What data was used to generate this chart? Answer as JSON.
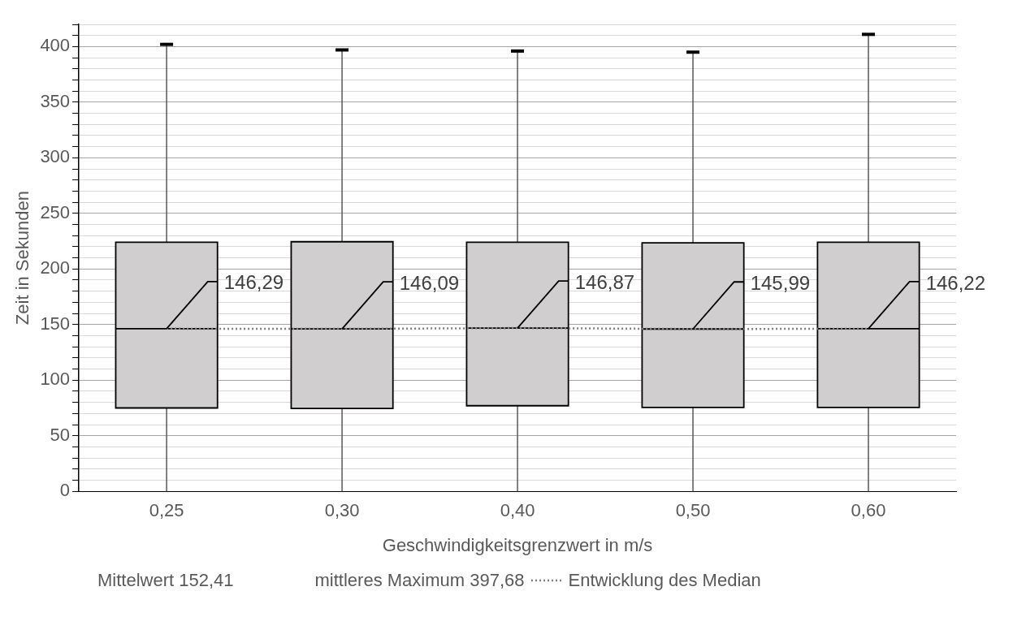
{
  "chart_data": {
    "type": "box",
    "xlabel": "Geschwindigkeitsgrenzwert in m/s",
    "ylabel": "Zeit in Sekunden",
    "categories": [
      "0,25",
      "0,30",
      "0,40",
      "0,50",
      "0,60"
    ],
    "boxes": [
      {
        "low": 0,
        "q1": 75,
        "median": 146.29,
        "q3": 224,
        "high": 402
      },
      {
        "low": 0,
        "q1": 74.5,
        "median": 146.09,
        "q3": 224.5,
        "high": 397
      },
      {
        "low": 0,
        "q1": 77,
        "median": 146.87,
        "q3": 224,
        "high": 396
      },
      {
        "low": 0,
        "q1": 75.5,
        "median": 145.99,
        "q3": 223.5,
        "high": 395
      },
      {
        "low": 0,
        "q1": 75.5,
        "median": 146.22,
        "q3": 224,
        "high": 411
      }
    ],
    "color": "#d0cece",
    "series": [
      {
        "name": "Entwicklung des Median",
        "type": "line",
        "color": "#7f7f7f",
        "line_style": "dotted",
        "marker": "none",
        "values": [
          146.29,
          146.09,
          146.87,
          145.99,
          146.22
        ],
        "value_labels": [
          "146,29",
          "146,09",
          "146,87",
          "145,99",
          "146,22"
        ]
      }
    ],
    "ylim": [
      0,
      420
    ],
    "yticks": [
      0,
      {
        "value": 10,
        "label": null
      },
      {
        "value": 20,
        "label": null
      },
      {
        "value": 30,
        "label": null
      },
      {
        "value": 40,
        "label": null
      },
      50,
      {
        "value": 60,
        "label": null
      },
      {
        "value": 70,
        "label": null
      },
      {
        "value": 80,
        "label": null
      },
      {
        "value": 90,
        "label": null
      },
      100,
      {
        "value": 110,
        "label": null
      },
      {
        "value": 120,
        "label": null
      },
      {
        "value": 130,
        "label": null
      },
      {
        "value": 140,
        "label": null
      },
      150,
      {
        "value": 160,
        "label": null
      },
      {
        "value": 170,
        "label": null
      },
      {
        "value": 180,
        "label": null
      },
      {
        "value": 190,
        "label": null
      },
      200,
      {
        "value": 210,
        "label": null
      },
      {
        "value": 220,
        "label": null
      },
      {
        "value": 230,
        "label": null
      },
      {
        "value": 240,
        "label": null
      },
      250,
      {
        "value": 260,
        "label": null
      },
      {
        "value": 270,
        "label": null
      },
      {
        "value": 280,
        "label": null
      },
      {
        "value": 290,
        "label": null
      },
      300,
      {
        "value": 310,
        "label": null
      },
      {
        "value": 320,
        "label": null
      },
      {
        "value": 330,
        "label": null
      },
      {
        "value": 340,
        "label": null
      },
      350,
      {
        "value": 360,
        "label": null
      },
      {
        "value": 370,
        "label": null
      },
      {
        "value": 380,
        "label": null
      },
      {
        "value": 390,
        "label": null
      },
      400,
      {
        "value": 410,
        "label": null
      },
      {
        "value": 420,
        "label": null
      }
    ],
    "grid": "y",
    "legend": "bottom right",
    "annotations": [
      "Mittelwert 152,41",
      "mittleres Maximum 397,68"
    ]
  }
}
